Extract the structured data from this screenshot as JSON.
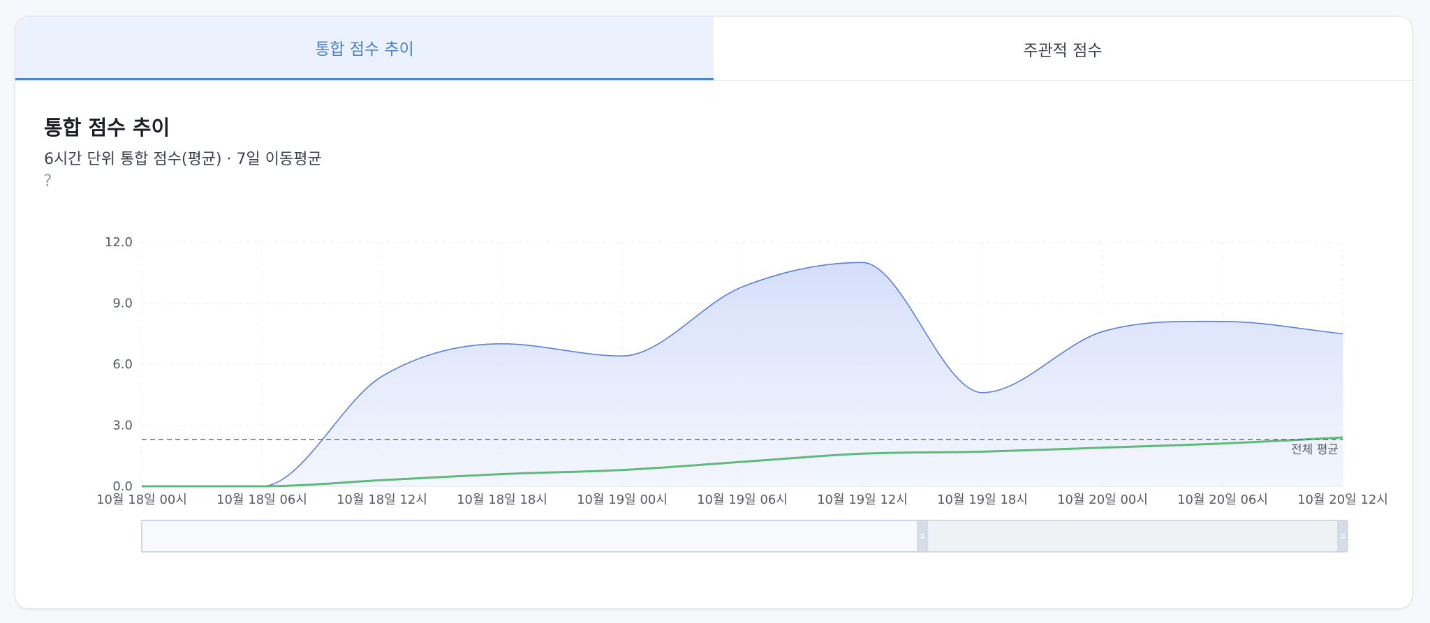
{
  "tabs": [
    {
      "label": "통합 점수 추이",
      "active": true
    },
    {
      "label": "주관적 점수",
      "active": false
    }
  ],
  "panel": {
    "title": "통합 점수 추이",
    "subtitle": "6시간 단위 통합 점수(평균) · 7일 이동평균",
    "help_icon": "?"
  },
  "colors": {
    "accent": "#4a7fce",
    "series_score": "#5b7fd9",
    "series_ma": "#5fb97a",
    "reference": "#5a5f6b",
    "area_fill": "#d5defb"
  },
  "chart_data": {
    "type": "area",
    "x": [
      "10월 18일 00시",
      "10월 18일 06시",
      "10월 18일 12시",
      "10월 18일 18시",
      "10월 19일 00시",
      "10월 19일 06시",
      "10월 19일 12시",
      "10월 19일 18시",
      "10월 20일 00시",
      "10월 20일 06시",
      "10월 20일 12시"
    ],
    "series": [
      {
        "values": [
          0,
          0,
          5.4,
          7.0,
          6.4,
          9.8,
          11.0,
          4.6,
          7.6,
          8.1,
          7.5
        ]
      },
      {
        "values": [
          0,
          0,
          0.3,
          0.6,
          0.8,
          1.2,
          1.6,
          1.7,
          1.9,
          2.1,
          2.4
        ]
      }
    ],
    "reference_line": {
      "label": "전체 평균",
      "value": 2.3
    },
    "yticks": [
      "0.0",
      "3.0",
      "6.0",
      "9.0",
      "12.0"
    ],
    "ylim": [
      0,
      12
    ],
    "grid": true,
    "zoom_slider": {
      "start": 0,
      "end": 0.65
    }
  }
}
